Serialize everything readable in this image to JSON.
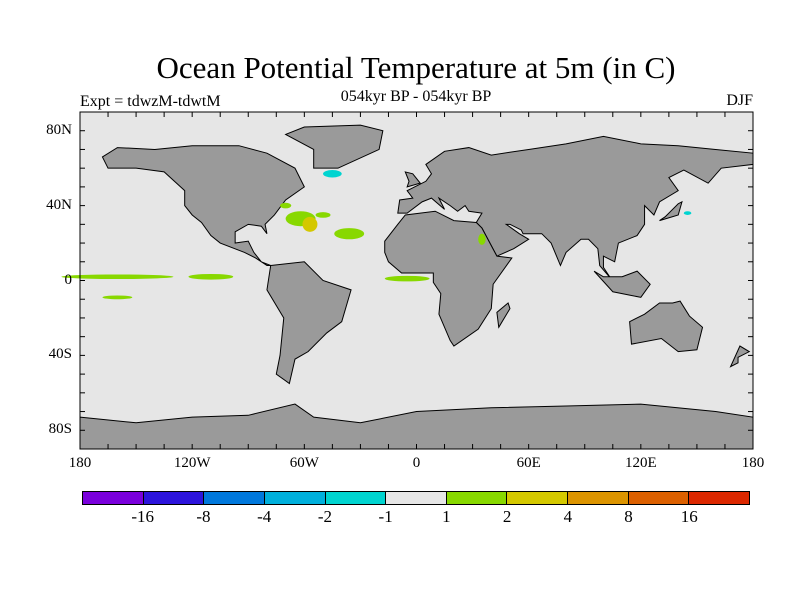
{
  "title": "Ocean Potential Temperature at 5m (in C)",
  "subtitle_left": "Expt = tdwzM-tdwtM",
  "subtitle_center": "054kyr BP - 054kyr BP",
  "subtitle_right": "DJF",
  "lat_labels": [
    "80N",
    "40N",
    "0",
    "40S",
    "80S"
  ],
  "lat_values": [
    80,
    40,
    0,
    -40,
    -80
  ],
  "lon_labels": [
    "180",
    "120W",
    "60W",
    "0",
    "60E",
    "120E",
    "180"
  ],
  "lon_values": [
    -180,
    -120,
    -60,
    0,
    60,
    120,
    180
  ],
  "colors": {
    "land": "#9a9a9a",
    "ocean": "#e6e6e6",
    "coast": "#000000"
  },
  "colorbar": {
    "colors": [
      "#7a00dc",
      "#2c14dc",
      "#0078dc",
      "#00b0dc",
      "#00d4d0",
      "#e6e6e6",
      "#88d800",
      "#d4c800",
      "#dc9400",
      "#dc6000",
      "#dc2800"
    ],
    "labels": [
      "-16",
      "-8",
      "-4",
      "-2",
      "-1",
      "1",
      "2",
      "4",
      "8",
      "16"
    ]
  }
}
